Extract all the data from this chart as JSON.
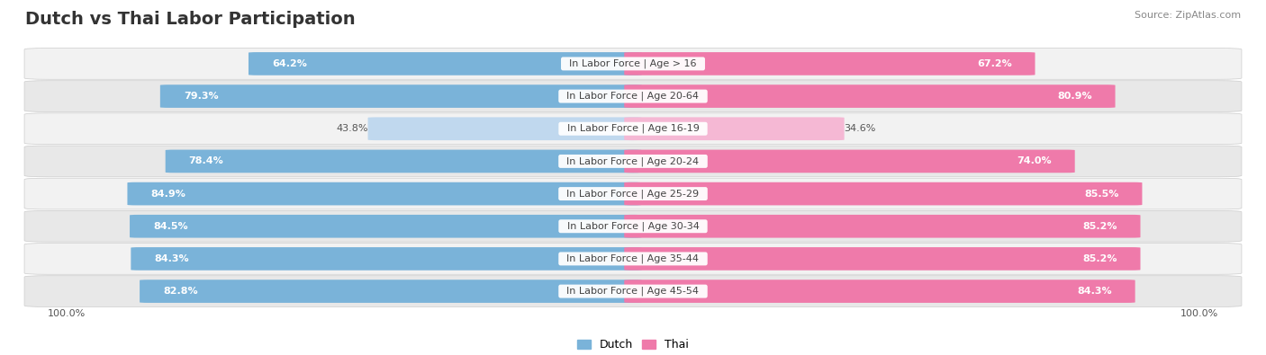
{
  "title": "Dutch vs Thai Labor Participation",
  "source": "Source: ZipAtlas.com",
  "categories": [
    "In Labor Force | Age > 16",
    "In Labor Force | Age 20-64",
    "In Labor Force | Age 16-19",
    "In Labor Force | Age 20-24",
    "In Labor Force | Age 25-29",
    "In Labor Force | Age 30-34",
    "In Labor Force | Age 35-44",
    "In Labor Force | Age 45-54"
  ],
  "dutch_values": [
    64.2,
    79.3,
    43.8,
    78.4,
    84.9,
    84.5,
    84.3,
    82.8
  ],
  "thai_values": [
    67.2,
    80.9,
    34.6,
    74.0,
    85.5,
    85.2,
    85.2,
    84.3
  ],
  "dutch_color": "#7ab3d9",
  "dutch_light_color": "#c0d8ee",
  "thai_color": "#ef7aaa",
  "thai_light_color": "#f5b8d4",
  "row_bg_colors": [
    "#f2f2f2",
    "#e8e8e8",
    "#f2f2f2",
    "#e8e8e8",
    "#f2f2f2",
    "#e8e8e8",
    "#f2f2f2",
    "#e8e8e8"
  ],
  "max_value": 100.0,
  "title_fontsize": 14,
  "label_fontsize": 8.0,
  "value_fontsize": 8.0
}
